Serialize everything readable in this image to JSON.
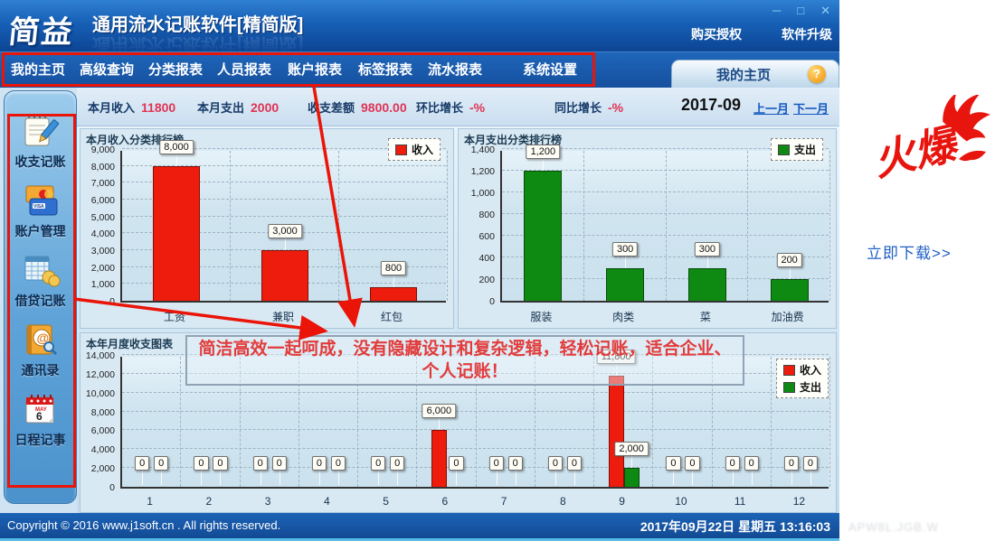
{
  "window": {
    "logo": "简益",
    "title": "通用流水记账软件",
    "edition": "[精简版]",
    "controls": {
      "minimize": "─",
      "maximize": "□",
      "close": "✕"
    },
    "links": {
      "buy": "购买授权",
      "upgrade": "软件升级"
    }
  },
  "nav": {
    "items": [
      "我的主页",
      "高级查询",
      "分类报表",
      "人员报表",
      "账户报表",
      "标签报表",
      "流水报表",
      "系统设置"
    ]
  },
  "tab": {
    "label": "我的主页",
    "help": "?"
  },
  "stats": {
    "items": [
      {
        "label": "本月收入",
        "value": "11800"
      },
      {
        "label": "本月支出",
        "value": "2000"
      },
      {
        "label": "收支差额",
        "value": "9800.00"
      },
      {
        "label": "环比增长",
        "value": "-%"
      },
      {
        "label": "同比增长",
        "value": "-%"
      }
    ],
    "period": "2017-09",
    "prev_month": "上一月",
    "next_month": "下一月"
  },
  "sidebar": {
    "items": [
      {
        "label": "收支记账",
        "icon": "ledger-icon"
      },
      {
        "label": "账户管理",
        "icon": "bank-cards-icon"
      },
      {
        "label": "借贷记账",
        "icon": "loan-table-icon"
      },
      {
        "label": "通讯录",
        "icon": "contacts-icon"
      },
      {
        "label": "日程记事",
        "icon": "calendar-icon"
      }
    ],
    "calendar_month": "MAY",
    "calendar_day": "6"
  },
  "chart_data": [
    {
      "type": "bar",
      "title": "本月收入分类排行榜",
      "categories": [
        "工资",
        "兼职",
        "红包"
      ],
      "series": [
        {
          "name": "收入",
          "color": "#ee1c0c",
          "values": [
            8000,
            3000,
            800
          ]
        }
      ],
      "ylim": [
        0,
        9000
      ],
      "ytick_step": 1000,
      "grid": true,
      "legend_position": "top-right"
    },
    {
      "type": "bar",
      "title": "本月支出分类排行榜",
      "categories": [
        "服装",
        "肉类",
        "菜",
        "加油费"
      ],
      "series": [
        {
          "name": "支出",
          "color": "#0e8a12",
          "values": [
            1200,
            300,
            300,
            200
          ]
        }
      ],
      "ylim": [
        0,
        1400
      ],
      "ytick_step": 200,
      "grid": true,
      "legend_position": "top-right"
    },
    {
      "type": "bar",
      "title": "本年月度收支图表",
      "categories": [
        "1",
        "2",
        "3",
        "4",
        "5",
        "6",
        "7",
        "8",
        "9",
        "10",
        "11",
        "12"
      ],
      "series": [
        {
          "name": "收入",
          "color": "#ee1c0c",
          "values": [
            0,
            0,
            0,
            0,
            0,
            6000,
            0,
            0,
            11800,
            0,
            0,
            0
          ]
        },
        {
          "name": "支出",
          "color": "#0e8a12",
          "values": [
            0,
            0,
            0,
            0,
            0,
            0,
            0,
            0,
            2000,
            0,
            0,
            0
          ]
        }
      ],
      "ylim": [
        0,
        14000
      ],
      "ytick_step": 2000,
      "grid": true,
      "legend_position": "right"
    }
  ],
  "annotation": {
    "line1": "简洁高效一起呵成，没有隐藏设计和复杂逻辑，轻松记账，适合企业、",
    "line2": "个人记账！"
  },
  "statusbar": {
    "copyright": "Copyright © 2016 www.j1soft.cn . All rights reserved.",
    "datetime": "2017年09月22日 星期五 13:16:03"
  },
  "promo": {
    "badge": "火爆",
    "download": "立即下载>>"
  },
  "colors": {
    "annotation_red": "#ea1408",
    "income_red": "#ee1c0c",
    "expense_green": "#0e8a12",
    "value_pink": "#e03355",
    "link_blue": "#1558c0"
  }
}
